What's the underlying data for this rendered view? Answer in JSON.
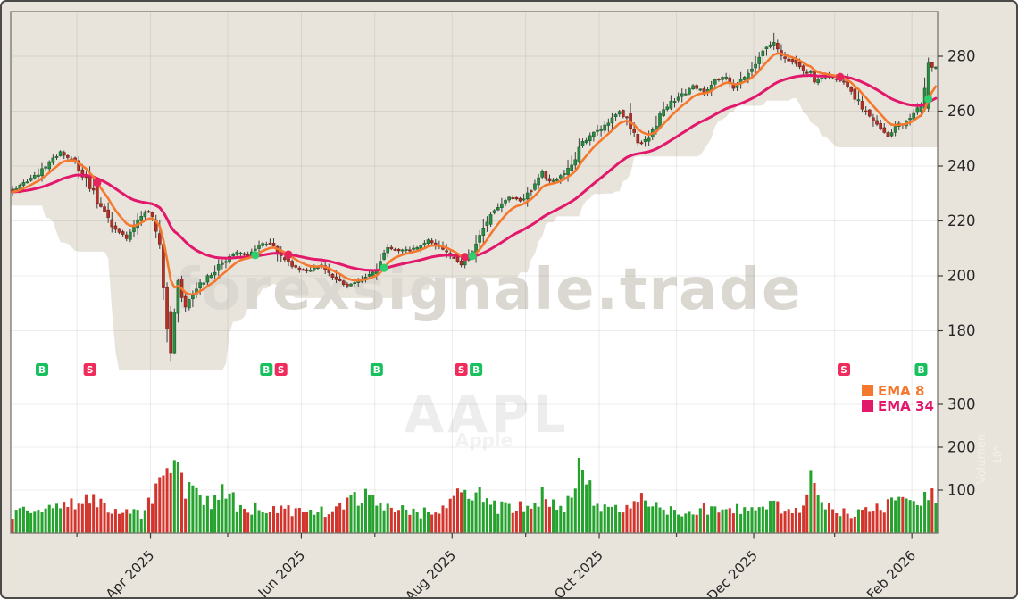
{
  "window": {
    "kind": "stock-chart",
    "background": "#e8e4dc",
    "plot_background": "#ffffff",
    "border_color": "#4a4a48"
  },
  "watermarks": {
    "site": "forexsignale.trade",
    "symbol": "AAPL",
    "company": "Apple",
    "volume_axis_label": "Volumen",
    "volume_axis_exponent": "10⁶"
  },
  "legend": {
    "items": [
      {
        "label": "EMA 8",
        "color": "#f4792f"
      },
      {
        "label": "EMA 34",
        "color": "#e2186b"
      }
    ]
  },
  "colors": {
    "grid": "rgba(0,0,0,0.075)",
    "axis_line": "#76766f",
    "tick_text": "#262626",
    "candle_up": "#2a8c43",
    "candle_up_edge": "#1d5c2c",
    "candle_down": "#b13127",
    "candle_down_edge": "#77201a",
    "wick": "#3c3c3c",
    "volume_up": "#26a32e",
    "volume_down": "#d3342c",
    "ema8": "#f4792f",
    "ema34": "#e2186b",
    "buy": "#19c05e",
    "sell": "#f02c5c",
    "dot_buy": "#2fce6f",
    "dot_sell": "#e8245c",
    "watermark_site": "#dbd8d2",
    "watermark_symbol": "#ededed",
    "watermark_company": "#f2f2f2",
    "watermark_volume": "#f2f0ea"
  },
  "chart_data": {
    "type": "candlestick+volume",
    "symbol": "AAPL",
    "company": "Apple",
    "n_days": 252,
    "price_ticks": [
      180,
      200,
      220,
      240,
      260,
      280
    ],
    "volume_ticks": [
      100,
      200,
      300
    ],
    "price_axis_range": [
      163,
      296
    ],
    "volume_axis_range": [
      0,
      380
    ],
    "x_tick_labels": [
      "Apr 2025",
      "Jun 2025",
      "Aug 2025",
      "Oct 2025",
      "Dec 2025",
      "Feb 2026"
    ],
    "months": [
      {
        "day": 18,
        "label": ""
      },
      {
        "day": 38,
        "label": "Apr 2025"
      },
      {
        "day": 59,
        "label": ""
      },
      {
        "day": 79,
        "label": "Jun 2025"
      },
      {
        "day": 99,
        "label": ""
      },
      {
        "day": 120,
        "label": "Aug 2025"
      },
      {
        "day": 140,
        "label": ""
      },
      {
        "day": 160,
        "label": "Oct 2025"
      },
      {
        "day": 181,
        "label": ""
      },
      {
        "day": 202,
        "label": "Dec 2025"
      },
      {
        "day": 224,
        "label": ""
      },
      {
        "day": 245,
        "label": "Feb 2026"
      }
    ],
    "series": [
      {
        "name": "EMA 8",
        "type": "ema",
        "period": 8,
        "color": "#f4792f"
      },
      {
        "name": "EMA 34",
        "type": "ema",
        "period": 34,
        "color": "#e2186b"
      }
    ],
    "close_anchors": [
      [
        0,
        231
      ],
      [
        6,
        236
      ],
      [
        13,
        245
      ],
      [
        17,
        241
      ],
      [
        21,
        233
      ],
      [
        24,
        224
      ],
      [
        28,
        217
      ],
      [
        31,
        214
      ],
      [
        35,
        222
      ],
      [
        38,
        223
      ],
      [
        40,
        210
      ],
      [
        42,
        181
      ],
      [
        43,
        172
      ],
      [
        44,
        186
      ],
      [
        45,
        197
      ],
      [
        47,
        188
      ],
      [
        49,
        194
      ],
      [
        52,
        198
      ],
      [
        55,
        202
      ],
      [
        58,
        206
      ],
      [
        61,
        209
      ],
      [
        64,
        207
      ],
      [
        67,
        211
      ],
      [
        70,
        212
      ],
      [
        73,
        207
      ],
      [
        76,
        203
      ],
      [
        80,
        202
      ],
      [
        84,
        204
      ],
      [
        88,
        199
      ],
      [
        91,
        196
      ],
      [
        95,
        199
      ],
      [
        99,
        203
      ],
      [
        102,
        210
      ],
      [
        105,
        209
      ],
      [
        109,
        210
      ],
      [
        113,
        213
      ],
      [
        116,
        211
      ],
      [
        119,
        207
      ],
      [
        122,
        204
      ],
      [
        124,
        207
      ],
      [
        126,
        213
      ],
      [
        129,
        219
      ],
      [
        132,
        226
      ],
      [
        135,
        229
      ],
      [
        138,
        227
      ],
      [
        141,
        231
      ],
      [
        144,
        238
      ],
      [
        146,
        234
      ],
      [
        149,
        236
      ],
      [
        152,
        240
      ],
      [
        154,
        247
      ],
      [
        157,
        251
      ],
      [
        160,
        254
      ],
      [
        163,
        257
      ],
      [
        165,
        260
      ],
      [
        168,
        255
      ],
      [
        170,
        248
      ],
      [
        173,
        250
      ],
      [
        176,
        259
      ],
      [
        179,
        263
      ],
      [
        182,
        266
      ],
      [
        185,
        269
      ],
      [
        188,
        267
      ],
      [
        191,
        271
      ],
      [
        194,
        273
      ],
      [
        196,
        268
      ],
      [
        199,
        272
      ],
      [
        202,
        277
      ],
      [
        205,
        283
      ],
      [
        207,
        285
      ],
      [
        209,
        280
      ],
      [
        212,
        278
      ],
      [
        215,
        275
      ],
      [
        217,
        274
      ],
      [
        218,
        271
      ],
      [
        221,
        273
      ],
      [
        224,
        272
      ],
      [
        226,
        270
      ],
      [
        229,
        265
      ],
      [
        232,
        259
      ],
      [
        235,
        255
      ],
      [
        238,
        251
      ],
      [
        241,
        255
      ],
      [
        244,
        257
      ],
      [
        247,
        261
      ],
      [
        249,
        277
      ],
      [
        251,
        276
      ]
    ],
    "volume_anchors": [
      [
        0,
        45
      ],
      [
        6,
        55
      ],
      [
        13,
        60
      ],
      [
        21,
        75
      ],
      [
        28,
        55
      ],
      [
        35,
        45
      ],
      [
        40,
        110
      ],
      [
        42,
        140
      ],
      [
        43,
        150
      ],
      [
        44,
        185
      ],
      [
        46,
        120
      ],
      [
        49,
        90
      ],
      [
        53,
        70
      ],
      [
        58,
        95
      ],
      [
        61,
        65
      ],
      [
        67,
        55
      ],
      [
        73,
        60
      ],
      [
        80,
        45
      ],
      [
        85,
        50
      ],
      [
        91,
        65
      ],
      [
        95,
        85
      ],
      [
        99,
        75
      ],
      [
        103,
        55
      ],
      [
        110,
        45
      ],
      [
        116,
        50
      ],
      [
        120,
        95
      ],
      [
        124,
        100
      ],
      [
        127,
        85
      ],
      [
        131,
        60
      ],
      [
        136,
        55
      ],
      [
        141,
        70
      ],
      [
        144,
        85
      ],
      [
        148,
        60
      ],
      [
        152,
        70
      ],
      [
        154,
        165
      ],
      [
        156,
        110
      ],
      [
        160,
        60
      ],
      [
        165,
        55
      ],
      [
        168,
        75
      ],
      [
        171,
        80
      ],
      [
        176,
        55
      ],
      [
        182,
        50
      ],
      [
        188,
        55
      ],
      [
        194,
        60
      ],
      [
        199,
        50
      ],
      [
        205,
        65
      ],
      [
        209,
        60
      ],
      [
        215,
        55
      ],
      [
        217,
        150
      ],
      [
        220,
        60
      ],
      [
        226,
        45
      ],
      [
        230,
        50
      ],
      [
        235,
        55
      ],
      [
        238,
        65
      ],
      [
        242,
        70
      ],
      [
        246,
        80
      ],
      [
        249,
        95
      ],
      [
        251,
        70
      ]
    ],
    "overrides": [
      {
        "day": 43,
        "open": 187,
        "close": 172,
        "low": 169,
        "high": 189
      },
      {
        "day": 207,
        "high": 288.5
      },
      {
        "day": 249,
        "open": 261,
        "close": 277.5,
        "high": 279.5,
        "low": 259.5
      }
    ],
    "signals": [
      {
        "type": "B",
        "day": 8
      },
      {
        "type": "S",
        "day": 21
      },
      {
        "type": "B",
        "day": 69
      },
      {
        "type": "S",
        "day": 73
      },
      {
        "type": "B",
        "day": 99
      },
      {
        "type": "S",
        "day": 122
      },
      {
        "type": "B",
        "day": 126
      },
      {
        "type": "S",
        "day": 226
      },
      {
        "type": "B",
        "day": 247
      }
    ]
  }
}
